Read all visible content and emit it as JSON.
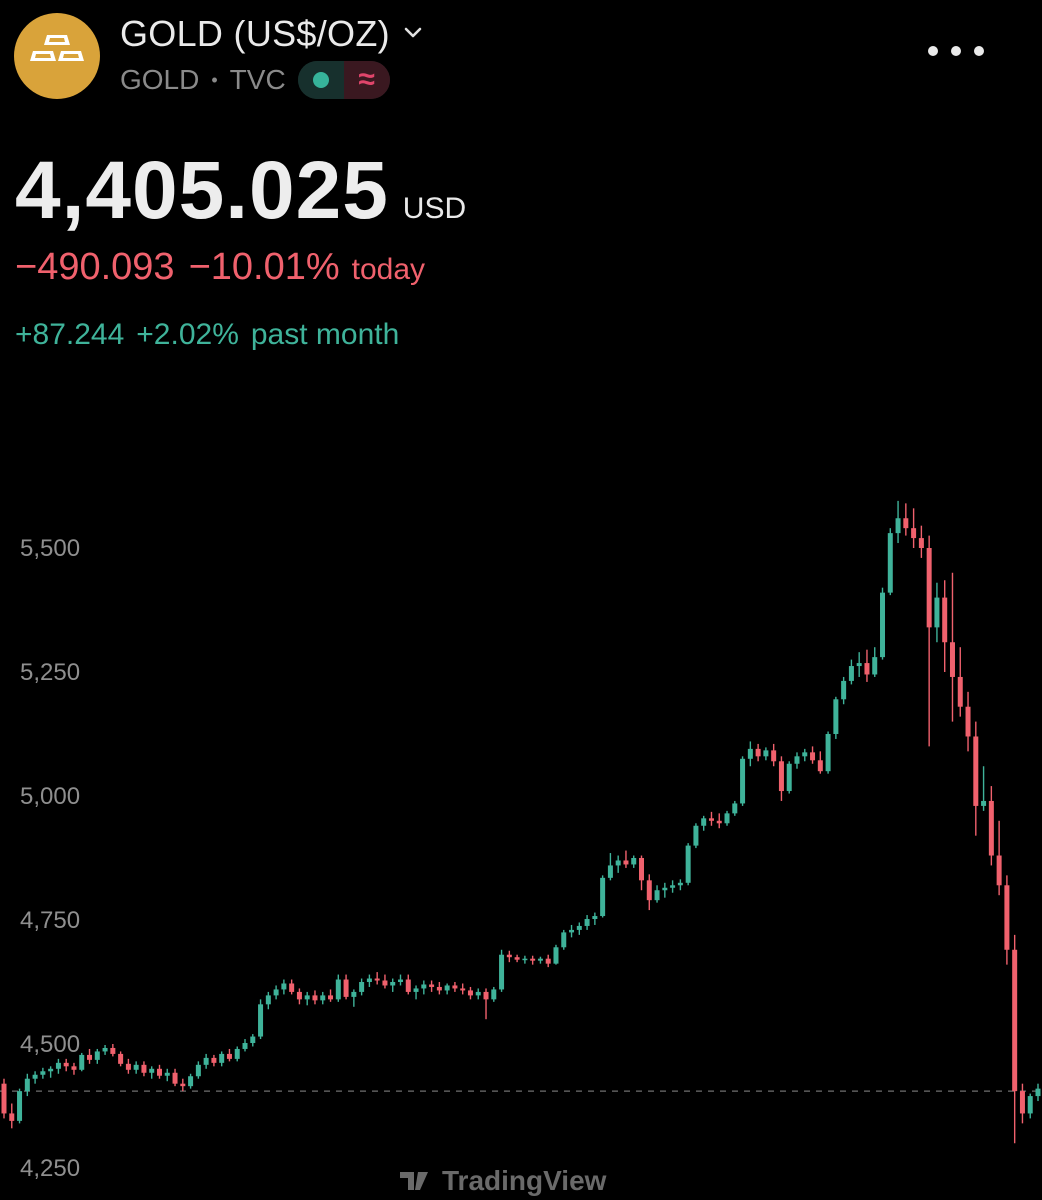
{
  "header": {
    "title": "GOLD (US$/OZ)",
    "symbol": "GOLD",
    "exchange": "TVC",
    "logo_icon": "gold-bars-icon",
    "status_icons": [
      "market-open-dot-icon",
      "delayed-data-icon"
    ],
    "more_icon": "more-dots-icon"
  },
  "quote": {
    "price": "4,405.025",
    "currency": "USD",
    "change_abs": "−490.093",
    "change_pct": "−10.01%",
    "change_label": "today",
    "month_abs": "+87.244",
    "month_pct": "+2.02%",
    "month_label": "past month"
  },
  "colors": {
    "up": "#3fb39a",
    "down": "#f0616d",
    "logo": "#d9a33a",
    "background": "#000000"
  },
  "chart_data": {
    "type": "candlestick",
    "y_ticks": [
      "5,500",
      "5,250",
      "5,000",
      "4,750",
      "4,500",
      "4,250"
    ],
    "y_tick_values": [
      5500,
      5250,
      5000,
      4750,
      4500,
      4250
    ],
    "ylim": [
      4200,
      5600
    ],
    "reference_price": 4405,
    "watermark": "TradingView",
    "series": [
      {
        "name": "",
        "candles": [
          [
            4420,
            4430,
            4350,
            4360
          ],
          [
            4360,
            4380,
            4330,
            4345
          ],
          [
            4345,
            4410,
            4340,
            4405
          ],
          [
            4405,
            4440,
            4395,
            4430
          ],
          [
            4430,
            4445,
            4420,
            4438
          ],
          [
            4438,
            4452,
            4430,
            4445
          ],
          [
            4445,
            4455,
            4432,
            4450
          ],
          [
            4450,
            4470,
            4440,
            4462
          ],
          [
            4462,
            4470,
            4445,
            4455
          ],
          [
            4455,
            4462,
            4438,
            4448
          ],
          [
            4448,
            4482,
            4445,
            4478
          ],
          [
            4478,
            4490,
            4460,
            4468
          ],
          [
            4468,
            4490,
            4460,
            4485
          ],
          [
            4485,
            4498,
            4478,
            4492
          ],
          [
            4492,
            4500,
            4475,
            4480
          ],
          [
            4480,
            4485,
            4455,
            4460
          ],
          [
            4460,
            4470,
            4440,
            4448
          ],
          [
            4448,
            4465,
            4440,
            4458
          ],
          [
            4458,
            4465,
            4435,
            4442
          ],
          [
            4442,
            4455,
            4430,
            4450
          ],
          [
            4450,
            4458,
            4430,
            4436
          ],
          [
            4436,
            4450,
            4425,
            4442
          ],
          [
            4442,
            4450,
            4415,
            4420
          ],
          [
            4420,
            4430,
            4405,
            4415
          ],
          [
            4415,
            4440,
            4410,
            4435
          ],
          [
            4435,
            4465,
            4430,
            4458
          ],
          [
            4458,
            4480,
            4450,
            4472
          ],
          [
            4472,
            4478,
            4455,
            4462
          ],
          [
            4462,
            4485,
            4455,
            4480
          ],
          [
            4480,
            4490,
            4465,
            4470
          ],
          [
            4470,
            4495,
            4465,
            4490
          ],
          [
            4490,
            4510,
            4485,
            4502
          ],
          [
            4502,
            4520,
            4495,
            4515
          ],
          [
            4515,
            4590,
            4510,
            4580
          ],
          [
            4580,
            4605,
            4570,
            4598
          ],
          [
            4598,
            4618,
            4590,
            4610
          ],
          [
            4610,
            4630,
            4600,
            4622
          ],
          [
            4622,
            4630,
            4600,
            4605
          ],
          [
            4605,
            4612,
            4580,
            4590
          ],
          [
            4590,
            4605,
            4578,
            4598
          ],
          [
            4598,
            4608,
            4580,
            4588
          ],
          [
            4588,
            4605,
            4580,
            4598
          ],
          [
            4598,
            4610,
            4585,
            4590
          ],
          [
            4590,
            4640,
            4585,
            4630
          ],
          [
            4630,
            4640,
            4590,
            4595
          ],
          [
            4595,
            4610,
            4575,
            4605
          ],
          [
            4605,
            4632,
            4598,
            4625
          ],
          [
            4625,
            4640,
            4615,
            4632
          ],
          [
            4632,
            4645,
            4620,
            4628
          ],
          [
            4628,
            4640,
            4612,
            4618
          ],
          [
            4618,
            4632,
            4605,
            4625
          ],
          [
            4625,
            4640,
            4618,
            4630
          ],
          [
            4630,
            4640,
            4600,
            4605
          ],
          [
            4605,
            4618,
            4590,
            4612
          ],
          [
            4612,
            4628,
            4600,
            4620
          ],
          [
            4620,
            4628,
            4605,
            4615
          ],
          [
            4615,
            4625,
            4600,
            4608
          ],
          [
            4608,
            4622,
            4600,
            4618
          ],
          [
            4618,
            4625,
            4605,
            4612
          ],
          [
            4612,
            4622,
            4600,
            4608
          ],
          [
            4608,
            4615,
            4590,
            4598
          ],
          [
            4598,
            4612,
            4590,
            4605
          ],
          [
            4605,
            4612,
            4550,
            4590
          ],
          [
            4590,
            4615,
            4585,
            4610
          ],
          [
            4610,
            4690,
            4605,
            4680
          ],
          [
            4680,
            4688,
            4665,
            4675
          ],
          [
            4675,
            4680,
            4665,
            4670
          ],
          [
            4670,
            4678,
            4662,
            4672
          ],
          [
            4672,
            4678,
            4660,
            4668
          ],
          [
            4668,
            4676,
            4662,
            4672
          ],
          [
            4672,
            4680,
            4655,
            4662
          ],
          [
            4662,
            4700,
            4660,
            4695
          ],
          [
            4695,
            4730,
            4690,
            4725
          ],
          [
            4725,
            4740,
            4715,
            4730
          ],
          [
            4730,
            4745,
            4720,
            4738
          ],
          [
            4738,
            4760,
            4730,
            4752
          ],
          [
            4752,
            4765,
            4740,
            4758
          ],
          [
            4758,
            4840,
            4755,
            4835
          ],
          [
            4835,
            4885,
            4830,
            4860
          ],
          [
            4860,
            4880,
            4845,
            4870
          ],
          [
            4870,
            4890,
            4855,
            4862
          ],
          [
            4862,
            4880,
            4855,
            4875
          ],
          [
            4875,
            4880,
            4810,
            4830
          ],
          [
            4830,
            4842,
            4770,
            4790
          ],
          [
            4790,
            4820,
            4785,
            4810
          ],
          [
            4810,
            4825,
            4795,
            4815
          ],
          [
            4815,
            4830,
            4805,
            4820
          ],
          [
            4820,
            4832,
            4810,
            4825
          ],
          [
            4825,
            4905,
            4820,
            4900
          ],
          [
            4900,
            4945,
            4895,
            4940
          ],
          [
            4940,
            4960,
            4930,
            4955
          ],
          [
            4955,
            4968,
            4940,
            4950
          ],
          [
            4950,
            4965,
            4935,
            4945
          ],
          [
            4945,
            4970,
            4940,
            4965
          ],
          [
            4965,
            4990,
            4960,
            4985
          ],
          [
            4985,
            5080,
            4980,
            5075
          ],
          [
            5075,
            5110,
            5060,
            5095
          ],
          [
            5095,
            5105,
            5070,
            5080
          ],
          [
            5080,
            5098,
            5072,
            5092
          ],
          [
            5092,
            5105,
            5060,
            5070
          ],
          [
            5070,
            5080,
            4990,
            5010
          ],
          [
            5010,
            5070,
            5005,
            5065
          ],
          [
            5065,
            5088,
            5055,
            5080
          ],
          [
            5080,
            5095,
            5070,
            5088
          ],
          [
            5088,
            5100,
            5065,
            5072
          ],
          [
            5072,
            5090,
            5045,
            5050
          ],
          [
            5050,
            5130,
            5045,
            5125
          ],
          [
            5125,
            5200,
            5115,
            5195
          ],
          [
            5195,
            5240,
            5185,
            5232
          ],
          [
            5232,
            5275,
            5225,
            5262
          ],
          [
            5262,
            5290,
            5240,
            5268
          ],
          [
            5268,
            5295,
            5230,
            5245
          ],
          [
            5245,
            5300,
            5240,
            5280
          ],
          [
            5280,
            5420,
            5275,
            5410
          ],
          [
            5410,
            5540,
            5405,
            5530
          ],
          [
            5530,
            5595,
            5510,
            5560
          ],
          [
            5560,
            5590,
            5525,
            5540
          ],
          [
            5540,
            5580,
            5500,
            5520
          ],
          [
            5520,
            5545,
            5480,
            5500
          ],
          [
            5500,
            5525,
            5100,
            5340
          ],
          [
            5340,
            5430,
            5310,
            5400
          ],
          [
            5400,
            5435,
            5250,
            5310
          ],
          [
            5310,
            5450,
            5150,
            5240
          ],
          [
            5240,
            5300,
            5160,
            5180
          ],
          [
            5180,
            5210,
            5090,
            5120
          ],
          [
            5120,
            5150,
            4920,
            4980
          ],
          [
            4980,
            5060,
            4970,
            4990
          ],
          [
            4990,
            5020,
            4860,
            4880
          ],
          [
            4880,
            4950,
            4800,
            4820
          ],
          [
            4820,
            4840,
            4660,
            4690
          ],
          [
            4690,
            4720,
            4300,
            4405
          ],
          [
            4405,
            4420,
            4340,
            4360
          ],
          [
            4360,
            4400,
            4350,
            4395
          ],
          [
            4395,
            4420,
            4385,
            4410
          ]
        ]
      }
    ]
  }
}
